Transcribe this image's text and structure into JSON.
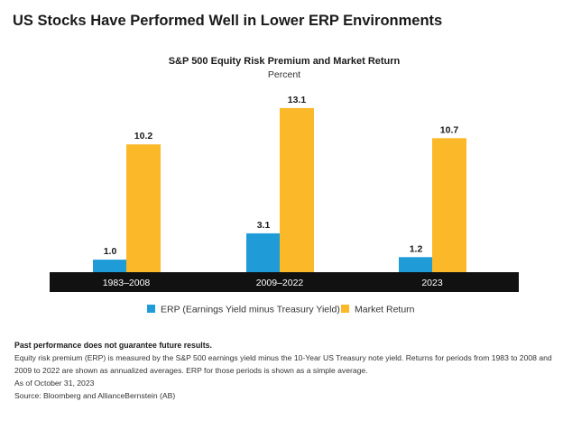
{
  "page": {
    "title": "US Stocks Have Performed Well in Lower ERP Environments"
  },
  "chart_data": {
    "type": "bar",
    "title": "S&P 500 Equity Risk Premium and Market Return",
    "subtitle": "Percent",
    "categories": [
      "1983–2008",
      "2009–2022",
      "2023"
    ],
    "series": [
      {
        "name": "ERP (Earnings Yield minus Treasury Yield)",
        "values": [
          1.0,
          3.1,
          1.2
        ],
        "labels": [
          "1.0",
          "3.1",
          "1.2"
        ],
        "color": "#1f9bd7"
      },
      {
        "name": "Market Return",
        "values": [
          10.2,
          13.1,
          10.7
        ],
        "labels": [
          "10.2",
          "13.1",
          "10.7"
        ],
        "color": "#fbb829"
      }
    ],
    "ylim": [
      0,
      14
    ],
    "grid": false,
    "legend_position": "bottom"
  },
  "notes": {
    "disclaimer": "Past performance does not guarantee future results.",
    "definition": "Equity risk premium (ERP) is measured by the S&P 500 earnings yield minus the 10-Year US Treasury note yield. Returns for periods from 1983 to 2008 and 2009 to 2022 are shown as annualized averages. ERP for those periods is shown as a simple average.",
    "date": "As of October 31, 2023",
    "source": "Source: Bloomberg and AllianceBernstein (AB)"
  }
}
